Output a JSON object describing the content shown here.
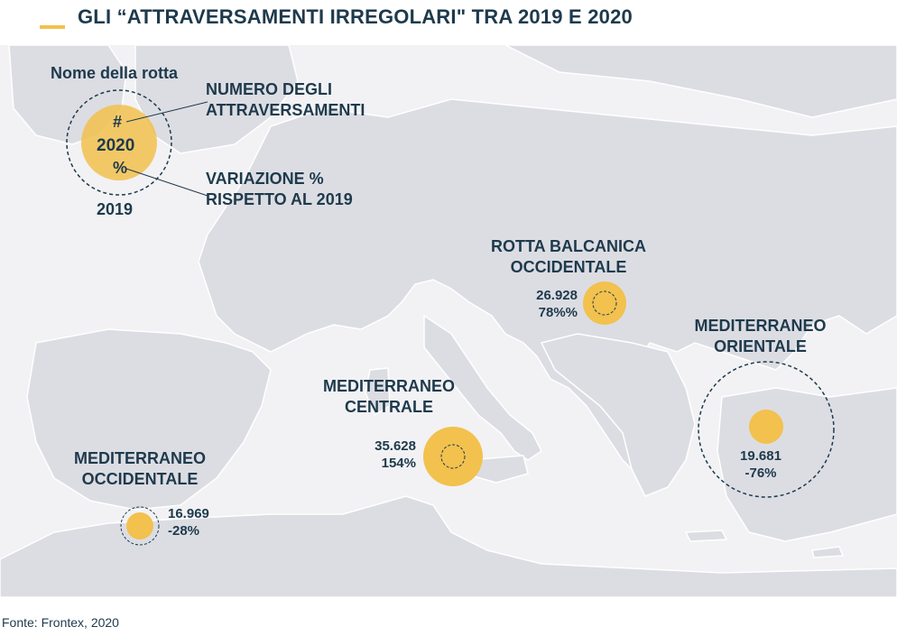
{
  "title": "GLI “ATTRAVERSAMENTI IRREGOLARI\" TRA 2019 E 2020",
  "legend": {
    "route_name": "Nome della rotta",
    "hash": "#",
    "year_2020": "2020",
    "percent": "%",
    "year_2019": "2019",
    "number_label_1": "NUMERO DEGLI",
    "number_label_2": "ATTRAVERSAMENTI",
    "variation_label_1": "VARIAZIONE %",
    "variation_label_2": "RISPETTO AL 2019"
  },
  "routes": [
    {
      "name_1": "MEDITERRANEO",
      "name_2": "OCCIDENTALE",
      "crossings": "16.969",
      "variation": "-28%"
    },
    {
      "name_1": "MEDITERRANEO",
      "name_2": "CENTRALE",
      "crossings": "35.628",
      "variation": "154%"
    },
    {
      "name_1": "ROTTA BALCANICA",
      "name_2": "OCCIDENTALE",
      "crossings": "26.928",
      "variation": "78%%"
    },
    {
      "name_1": "MEDITERRANEO",
      "name_2": "ORIENTALE",
      "crossings": "19.681",
      "variation": "-76%"
    }
  ],
  "source": "Fonte: Frontex, 2020",
  "colors": {
    "sea": "#f2f2f4",
    "land": "#dcdde3",
    "border": "#ffffff",
    "bubble": "#f2c14e",
    "text": "#1e3a4c"
  }
}
